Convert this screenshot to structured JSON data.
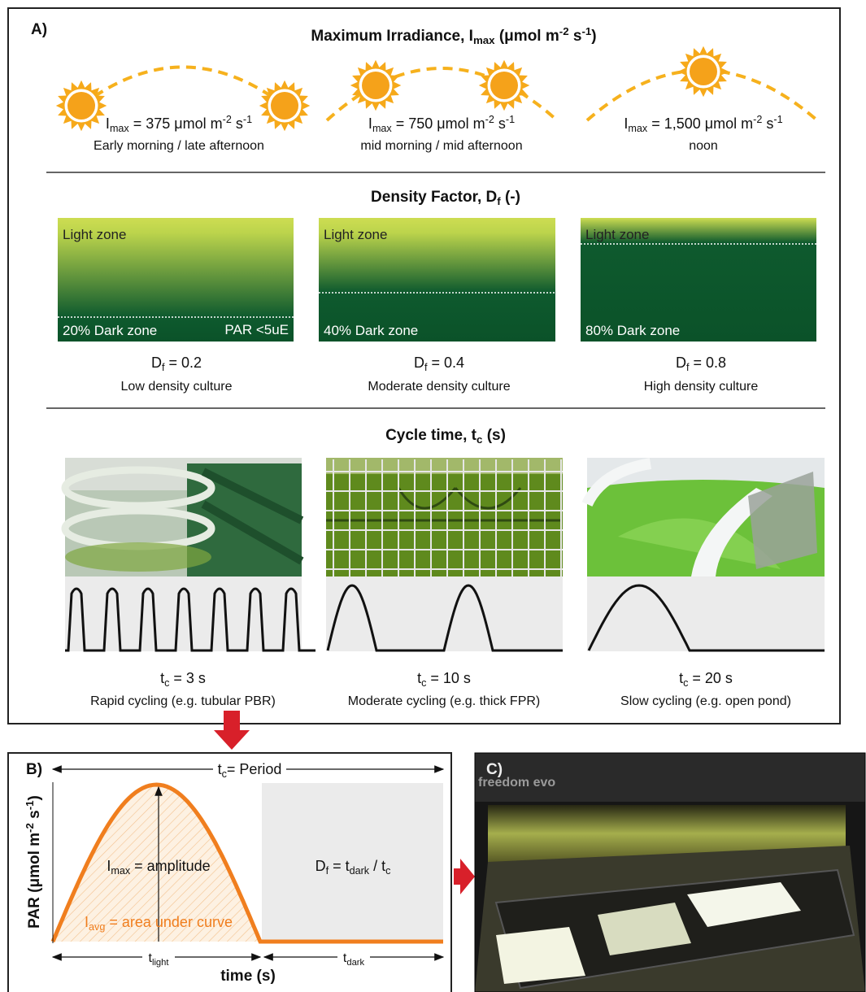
{
  "panel_a": {
    "label": "A)",
    "irradiance": {
      "title": [
        "Maximum Irradiance, I",
        "max",
        " (μmol m",
        "-2",
        " s",
        "-1",
        ")"
      ],
      "items": [
        {
          "value": [
            "I",
            "max",
            " = 375 μmol m",
            "-2",
            " s",
            "-1"
          ],
          "description": "Early morning / late afternoon"
        },
        {
          "value": [
            "I",
            "max",
            " = 750 μmol m",
            "-2",
            " s",
            "-1"
          ],
          "description": "mid morning / mid afternoon"
        },
        {
          "value": [
            "I",
            "max",
            " = 1,500 μmol m",
            "-2",
            " s",
            "-1"
          ],
          "description": "noon"
        }
      ]
    },
    "density": {
      "title": [
        "Density Factor, D",
        "f",
        " (-)"
      ],
      "items": [
        {
          "light_zone": "Light zone",
          "dark_zone": "20% Dark zone",
          "note": "PAR <5uE",
          "factor": [
            "D",
            "f",
            " = 0.2"
          ],
          "description": "Low density culture"
        },
        {
          "light_zone": "Light zone",
          "dark_zone": "40% Dark zone",
          "factor": [
            "D",
            "f",
            " = 0.4"
          ],
          "description": "Moderate density culture"
        },
        {
          "light_zone": "Light zone",
          "dark_zone": "80% Dark zone",
          "factor": [
            "D",
            "f",
            " = 0.8"
          ],
          "description": "High density culture"
        }
      ]
    },
    "cycle": {
      "title": [
        "Cycle time, t",
        "c",
        " (s)"
      ],
      "items": [
        {
          "time": [
            "t",
            "c",
            " = 3 s"
          ],
          "description": "Rapid cycling (e.g. tubular PBR)"
        },
        {
          "time": [
            "t",
            "c",
            " = 10 s"
          ],
          "description": "Moderate cycling (e.g. thick FPR)"
        },
        {
          "time": [
            "t",
            "c",
            " = 20 s"
          ],
          "description": "Slow cycling (e.g. open pond)"
        }
      ]
    }
  },
  "panel_b": {
    "label": "B)",
    "period": [
      "t",
      "c",
      "= Period"
    ],
    "y_axis": [
      "PAR (μmol m",
      "-2",
      " s",
      "-1",
      ")"
    ],
    "amplitude": [
      "I",
      "max",
      " = amplitude"
    ],
    "average": [
      "I",
      "avg",
      " = area under curve"
    ],
    "density": [
      "D",
      "f",
      " = t",
      "dark",
      " / t",
      "c"
    ],
    "t_light": [
      "t",
      "light"
    ],
    "t_dark": [
      "t",
      "dark"
    ],
    "x_axis": "time (s)"
  },
  "panel_c": {
    "label": "C)",
    "brand": "freedom evo"
  }
}
